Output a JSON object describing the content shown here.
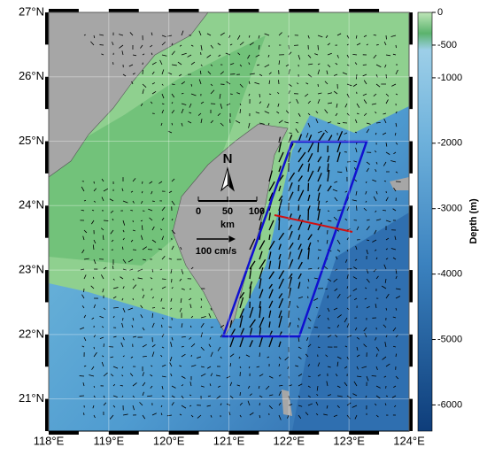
{
  "map": {
    "xlim": [
      118,
      124
    ],
    "ylim": [
      20.5,
      27
    ],
    "xticks": [
      {
        "value": 118,
        "label": "118°E"
      },
      {
        "value": 119,
        "label": "119°E"
      },
      {
        "value": 120,
        "label": "120°E"
      },
      {
        "value": 121,
        "label": "121°E"
      },
      {
        "value": 122,
        "label": "122°E"
      },
      {
        "value": 123,
        "label": "123°E"
      },
      {
        "value": 124,
        "label": "124°E"
      }
    ],
    "yticks": [
      {
        "value": 21,
        "label": "21°N"
      },
      {
        "value": 22,
        "label": "22°N"
      },
      {
        "value": 23,
        "label": "23°N"
      },
      {
        "value": 24,
        "label": "24°N"
      },
      {
        "value": 25,
        "label": "25°N"
      },
      {
        "value": 26,
        "label": "26°N"
      },
      {
        "value": 27,
        "label": "27°N"
      }
    ]
  },
  "colorbar": {
    "label": "Depth (m)",
    "lim": [
      0,
      -6400
    ],
    "ticks": [
      0,
      -500,
      -1000,
      -2000,
      -3000,
      -4000,
      -5000,
      -6000
    ]
  },
  "north_arrow": "N",
  "scale_bar": {
    "ticks": [
      0,
      50,
      100
    ],
    "unit": "km"
  },
  "vector_legend": "100 cm/s"
}
